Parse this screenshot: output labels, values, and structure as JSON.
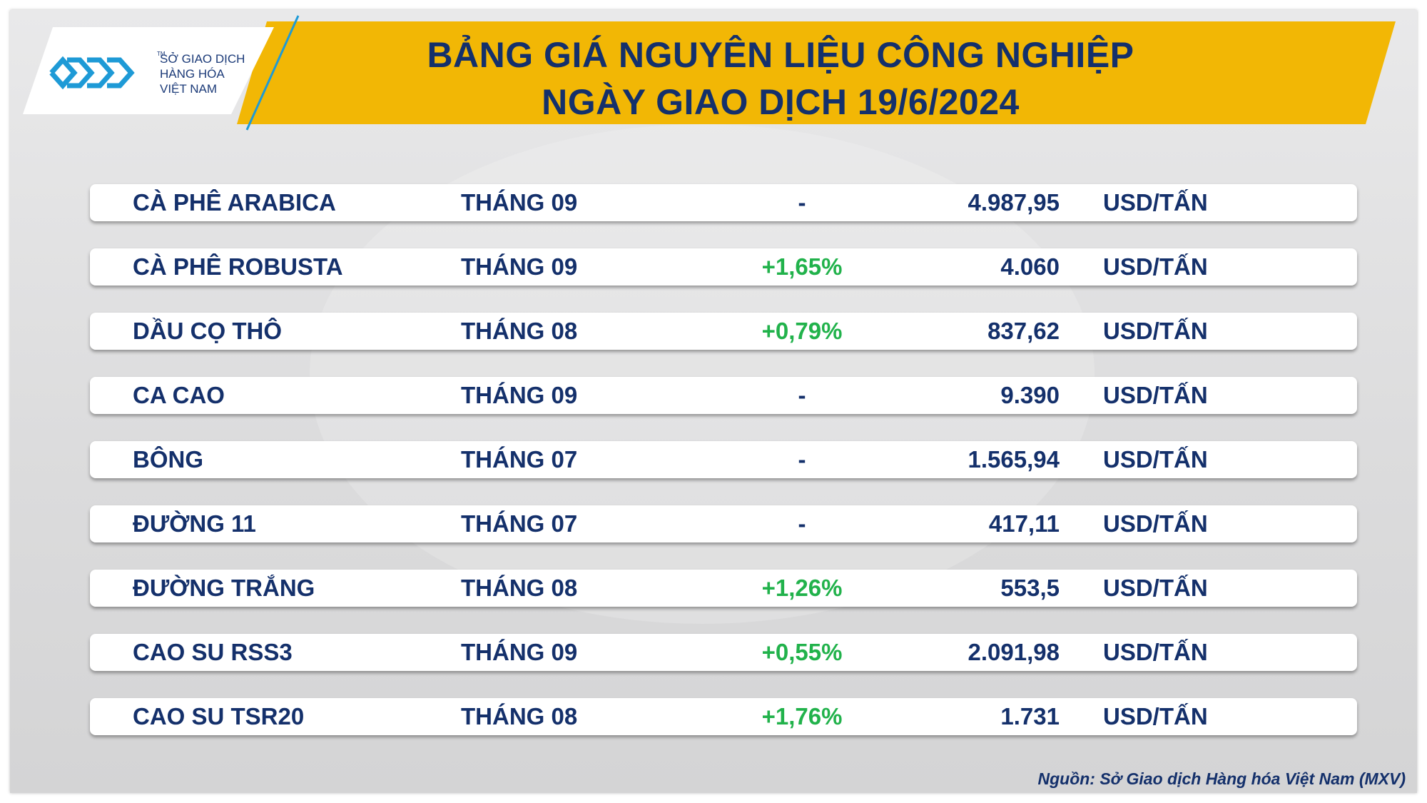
{
  "header": {
    "logo": {
      "icon": "mxv-logo-icon",
      "trademark": "TM",
      "line1": "SỞ GIAO DỊCH",
      "line2": "HÀNG HÓA",
      "line3": "VIỆT NAM"
    },
    "title_line1": "BẢNG GIÁ NGUYÊN LIỆU CÔNG NGHIỆP",
    "title_line2": "NGÀY GIAO DỊCH 19/6/2024"
  },
  "colors": {
    "banner": "#f2b705",
    "text": "#14306b",
    "up": "#21b24b",
    "logo_blue": "#1e9ad6"
  },
  "rows": [
    {
      "name": "CÀ PHÊ ARABICA",
      "month": "THÁNG 09",
      "change": "-",
      "price": "4.987,95",
      "unit": "USD/TẤN"
    },
    {
      "name": "CÀ PHÊ ROBUSTA",
      "month": "THÁNG 09",
      "change": "+1,65%",
      "price": "4.060",
      "unit": "USD/TẤN"
    },
    {
      "name": "DẦU CỌ THÔ",
      "month": "THÁNG 08",
      "change": "+0,79%",
      "price": "837,62",
      "unit": "USD/TẤN"
    },
    {
      "name": "CA CAO",
      "month": "THÁNG 09",
      "change": "-",
      "price": "9.390",
      "unit": "USD/TẤN"
    },
    {
      "name": "BÔNG",
      "month": "THÁNG 07",
      "change": "-",
      "price": "1.565,94",
      "unit": "USD/TẤN"
    },
    {
      "name": "ĐƯỜNG 11",
      "month": "THÁNG 07",
      "change": "-",
      "price": "417,11",
      "unit": "USD/TẤN"
    },
    {
      "name": "ĐƯỜNG TRẮNG",
      "month": "THÁNG 08",
      "change": "+1,26%",
      "price": "553,5",
      "unit": "USD/TẤN"
    },
    {
      "name": "CAO SU RSS3",
      "month": "THÁNG 09",
      "change": "+0,55%",
      "price": "2.091,98",
      "unit": "USD/TẤN"
    },
    {
      "name": "CAO SU TSR20",
      "month": "THÁNG 08",
      "change": "+1,76%",
      "price": "1.731",
      "unit": "USD/TẤN"
    }
  ],
  "source": "Nguồn: Sở Giao dịch Hàng hóa Việt Nam (MXV)"
}
